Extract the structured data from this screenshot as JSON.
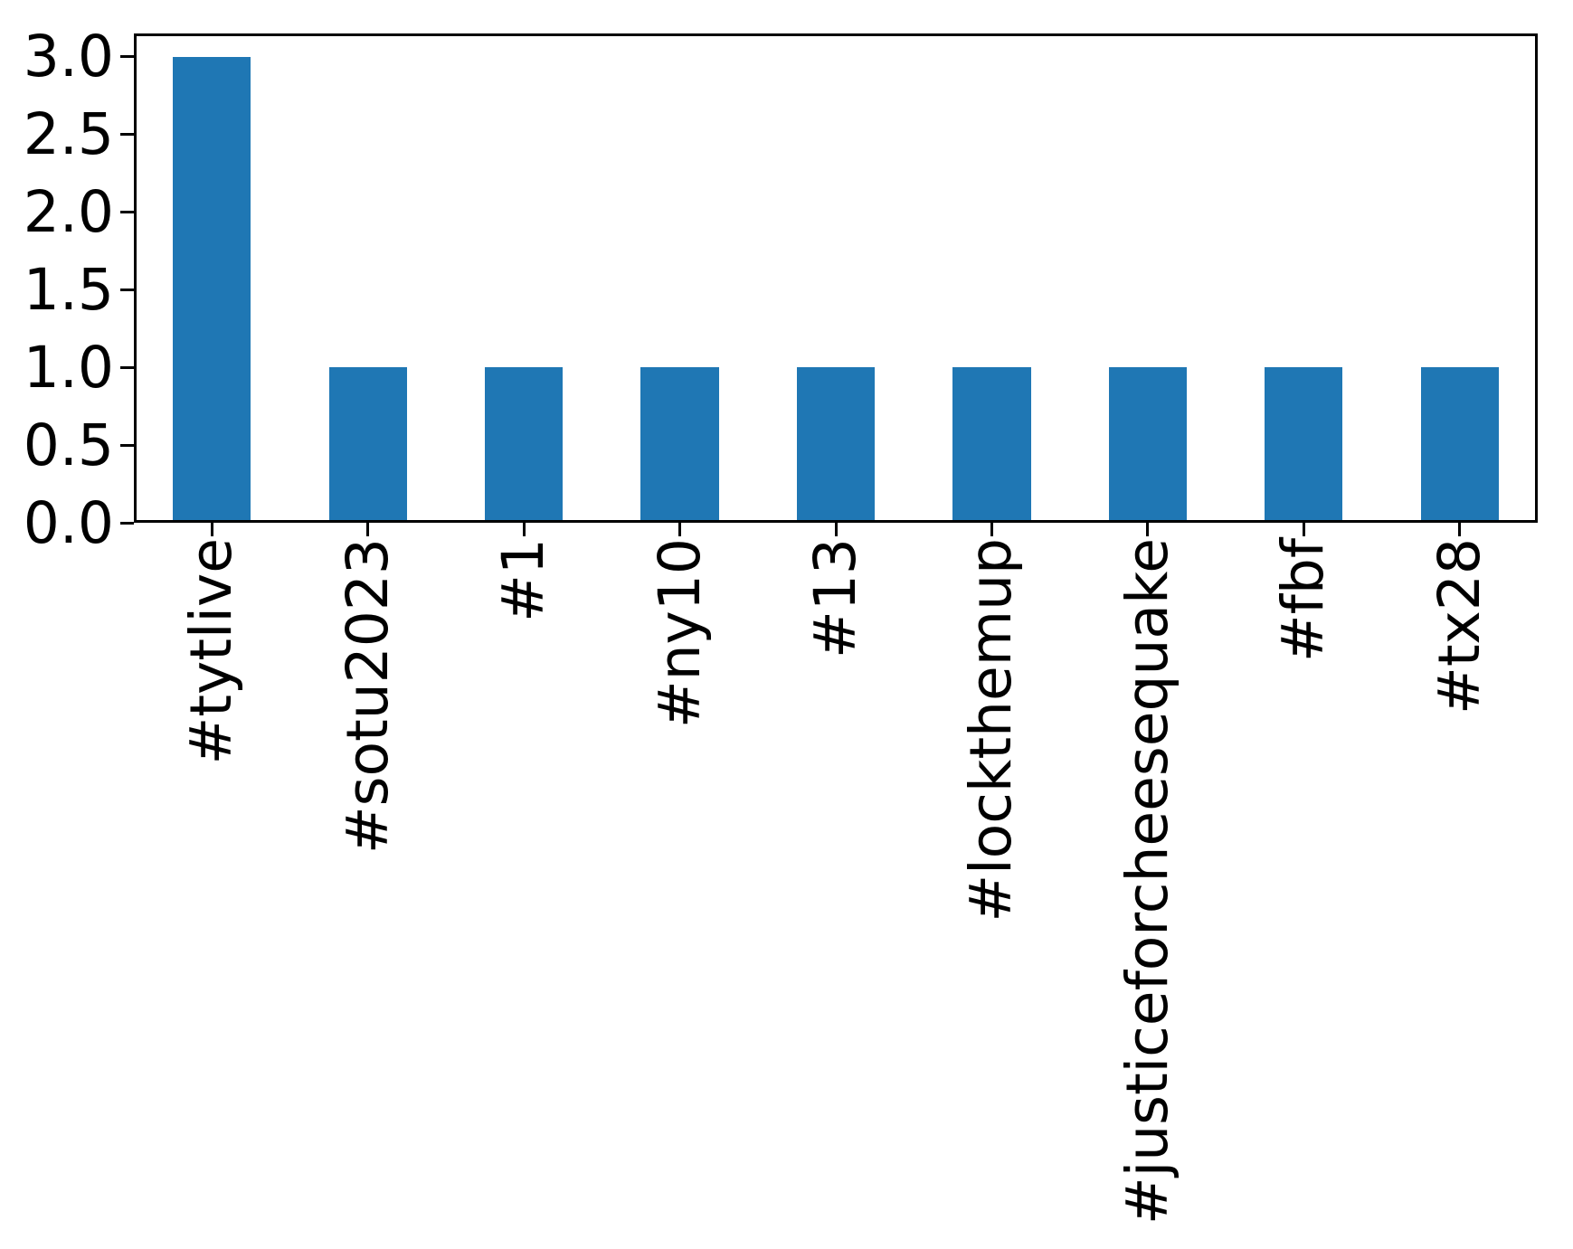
{
  "figure": {
    "background": "#ffffff"
  },
  "chart_data": {
    "type": "bar",
    "title": "",
    "xlabel": "",
    "ylabel": "",
    "categories": [
      "#tytlive",
      "#sotu2023",
      "#1",
      "#ny10",
      "#13",
      "#lockthemup",
      "#justiceforcheesequake",
      "#fbf",
      "#tx28"
    ],
    "values": [
      3,
      1,
      1,
      1,
      1,
      1,
      1,
      1,
      1
    ],
    "ylim": [
      0,
      3.15
    ],
    "yticks": [
      0.0,
      0.5,
      1.0,
      1.5,
      2.0,
      2.5,
      3.0
    ],
    "ytick_labels": [
      "0.0",
      "0.5",
      "1.0",
      "1.5",
      "2.0",
      "2.5",
      "3.0"
    ],
    "x_tick_label_rotation": 90,
    "bar_color": "#1f77b4",
    "axis_color": "#000000",
    "bar_width_fraction": 0.5,
    "grid": false,
    "legend_position": "none"
  }
}
